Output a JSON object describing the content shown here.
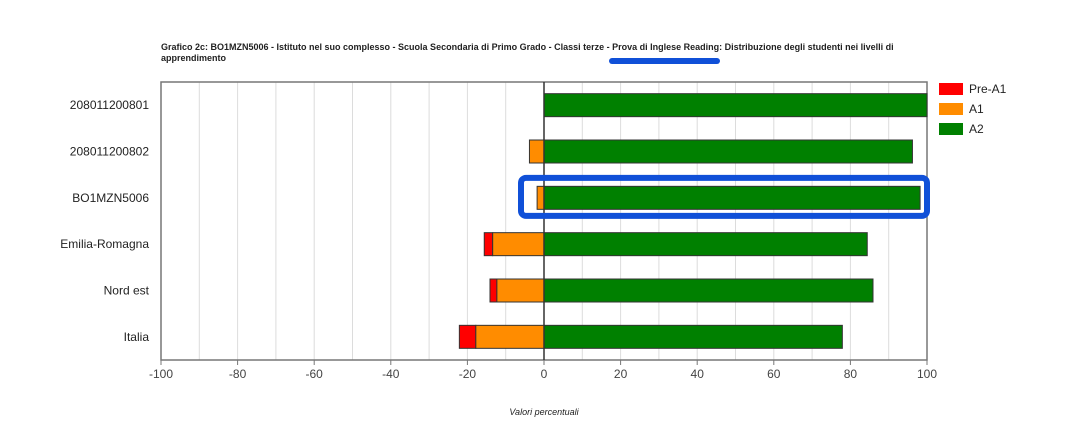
{
  "chart_data": {
    "type": "bar",
    "orientation": "horizontal",
    "stacked": "diverging",
    "title": "Grafico 2c: BO1MZN5006 - Istituto nel suo complesso - Scuola Secondaria di Primo Grado - Classi terze - Prova di Inglese Reading: Distribuzione degli studenti nei livelli di apprendimento",
    "xlabel": "Valori percentuali",
    "ylabel": "",
    "xlim": [
      -100,
      100
    ],
    "xticks": [
      "-100",
      "-80",
      "-60",
      "-40",
      "-20",
      "0",
      "20",
      "40",
      "60",
      "80",
      "100"
    ],
    "grid": true,
    "legend_position": "right-top",
    "categories": [
      "208011200801",
      "208011200802",
      "BO1MZN5006",
      "Emilia-Romagna",
      "Nord est",
      "Italia"
    ],
    "series": [
      {
        "name": "Pre-A1",
        "color": "#ff0000",
        "values": [
          0,
          0,
          0,
          2.2,
          1.8,
          4.3
        ]
      },
      {
        "name": "A1",
        "color": "#ff8c00",
        "values": [
          0,
          3.8,
          1.8,
          13.4,
          12.3,
          17.8
        ]
      },
      {
        "name": "A2",
        "color": "#008000",
        "values": [
          100,
          96.2,
          98.2,
          84.4,
          85.9,
          77.9
        ]
      }
    ],
    "highlight_category": "BO1MZN5006",
    "highlight_color": "#1050d8"
  }
}
